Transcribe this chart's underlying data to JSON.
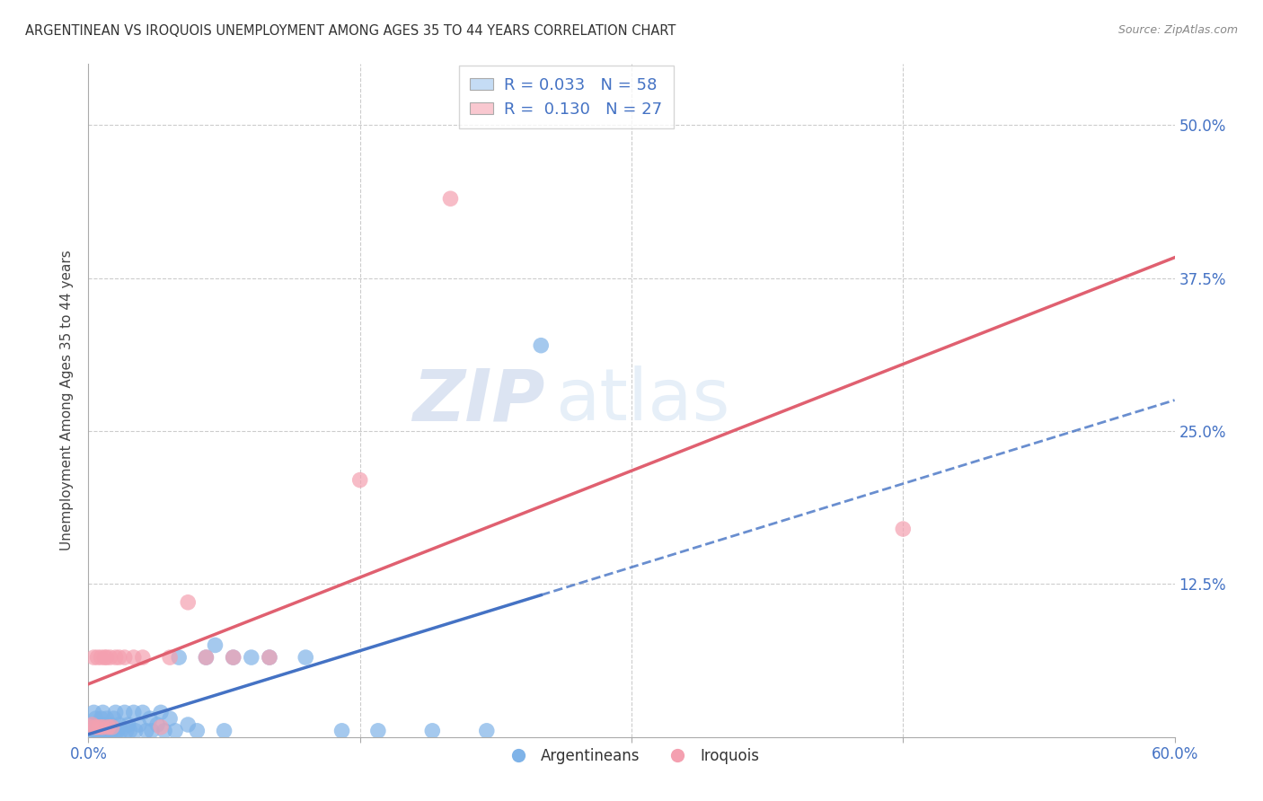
{
  "title": "ARGENTINEAN VS IROQUOIS UNEMPLOYMENT AMONG AGES 35 TO 44 YEARS CORRELATION CHART",
  "source": "Source: ZipAtlas.com",
  "ylabel": "Unemployment Among Ages 35 to 44 years",
  "xlim": [
    0.0,
    0.6
  ],
  "ylim": [
    0.0,
    0.55
  ],
  "xticks": [
    0.0,
    0.15,
    0.3,
    0.45,
    0.6
  ],
  "xtick_labels": [
    "0.0%",
    "",
    "",
    "",
    "60.0%"
  ],
  "yticks": [
    0.0,
    0.125,
    0.25,
    0.375,
    0.5
  ],
  "ytick_labels": [
    "",
    "12.5%",
    "25.0%",
    "37.5%",
    "50.0%"
  ],
  "grid_color": "#cccccc",
  "background_color": "#ffffff",
  "argentinean_color": "#7fb3e8",
  "iroquois_color": "#f4a0b0",
  "argentinean_R": 0.033,
  "argentinean_N": 58,
  "iroquois_R": 0.13,
  "iroquois_N": 27,
  "argentinean_x": [
    0.001,
    0.002,
    0.003,
    0.003,
    0.004,
    0.004,
    0.005,
    0.005,
    0.006,
    0.006,
    0.007,
    0.007,
    0.008,
    0.008,
    0.009,
    0.009,
    0.01,
    0.01,
    0.011,
    0.012,
    0.013,
    0.014,
    0.015,
    0.015,
    0.016,
    0.017,
    0.018,
    0.02,
    0.021,
    0.022,
    0.023,
    0.025,
    0.026,
    0.028,
    0.03,
    0.032,
    0.034,
    0.035,
    0.038,
    0.04,
    0.042,
    0.045,
    0.048,
    0.05,
    0.055,
    0.06,
    0.065,
    0.07,
    0.075,
    0.08,
    0.09,
    0.1,
    0.12,
    0.14,
    0.16,
    0.19,
    0.22,
    0.25
  ],
  "argentinean_y": [
    0.005,
    0.01,
    0.005,
    0.02,
    0.005,
    0.015,
    0.005,
    0.01,
    0.005,
    0.01,
    0.005,
    0.015,
    0.005,
    0.02,
    0.005,
    0.01,
    0.005,
    0.015,
    0.005,
    0.01,
    0.005,
    0.015,
    0.005,
    0.02,
    0.005,
    0.01,
    0.005,
    0.02,
    0.005,
    0.01,
    0.005,
    0.02,
    0.005,
    0.01,
    0.02,
    0.005,
    0.015,
    0.005,
    0.01,
    0.02,
    0.005,
    0.015,
    0.005,
    0.065,
    0.01,
    0.005,
    0.065,
    0.075,
    0.005,
    0.065,
    0.065,
    0.065,
    0.065,
    0.005,
    0.005,
    0.005,
    0.005,
    0.32
  ],
  "iroquois_x": [
    0.001,
    0.002,
    0.003,
    0.004,
    0.005,
    0.006,
    0.007,
    0.008,
    0.009,
    0.01,
    0.011,
    0.012,
    0.013,
    0.015,
    0.017,
    0.02,
    0.025,
    0.03,
    0.04,
    0.045,
    0.055,
    0.065,
    0.08,
    0.1,
    0.15,
    0.2,
    0.45
  ],
  "iroquois_y": [
    0.008,
    0.01,
    0.065,
    0.008,
    0.065,
    0.008,
    0.065,
    0.008,
    0.065,
    0.065,
    0.008,
    0.065,
    0.008,
    0.065,
    0.065,
    0.065,
    0.065,
    0.065,
    0.008,
    0.065,
    0.11,
    0.065,
    0.065,
    0.065,
    0.21,
    0.44,
    0.17
  ],
  "watermark_zip": "ZIP",
  "watermark_atlas": "atlas",
  "legend_box_color_argentinean": "#c5dcf5",
  "legend_box_color_iroquois": "#f9c8d0",
  "legend_text_color": "#4472c4",
  "trend_argentinean_color": "#4472c4",
  "trend_iroquois_color": "#e06070"
}
